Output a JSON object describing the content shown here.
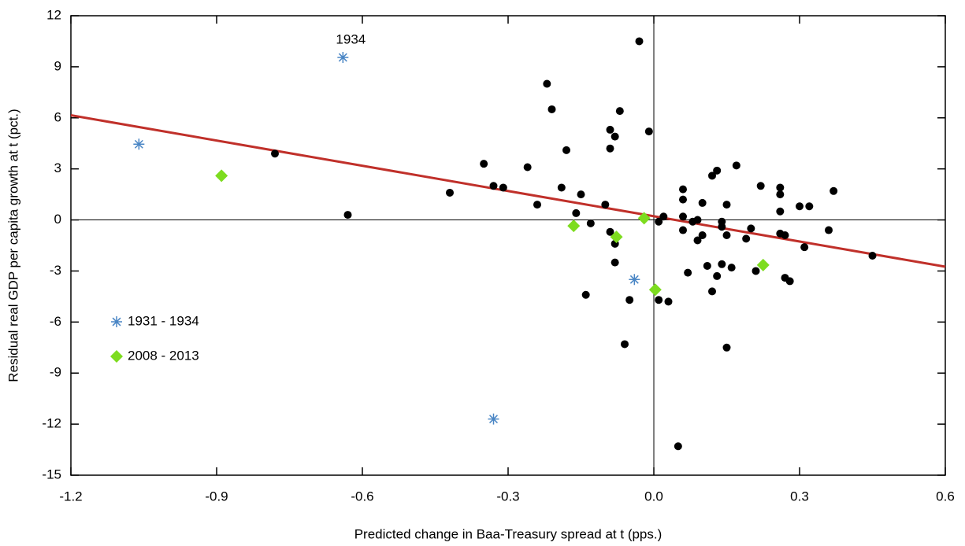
{
  "chart_data": {
    "type": "scatter",
    "xlabel": "Predicted change in Baa-Treasury spread at t (pps.)",
    "ylabel": "Residual real GDP per capita growth at t (pct.)",
    "xlim": [
      -1.2,
      0.6
    ],
    "ylim": [
      -15,
      12
    ],
    "xticks": [
      -1.2,
      -0.9,
      -0.6,
      -0.3,
      {
        "value": 0,
        "label": "0.0"
      },
      0.3,
      0.6
    ],
    "yticks": [
      -15,
      -12,
      -9,
      -6,
      -3,
      0,
      3,
      6,
      9,
      12
    ],
    "zero_lines": true,
    "legend": "lower left",
    "annotation": "1934",
    "series": [
      {
        "name": "1931 - 1934",
        "color": "#4a86c5",
        "marker": "star",
        "x": [
          -1.06,
          -0.64,
          -0.04,
          -0.33
        ],
        "values": [
          4.45,
          9.55,
          -3.5,
          -11.7
        ]
      },
      {
        "name": "2008 - 2013",
        "color": "#7ddc1f",
        "marker": "diamond",
        "x": [
          -0.89,
          -0.165,
          -0.077,
          -0.02,
          0.003,
          0.225
        ],
        "values": [
          2.6,
          -0.35,
          -1.0,
          0.1,
          -4.1,
          -2.65
        ]
      },
      {
        "color": "#000000",
        "marker": "dot",
        "x": [
          -0.78,
          -0.63,
          -0.42,
          -0.35,
          -0.33,
          -0.31,
          -0.26,
          -0.24,
          -0.22,
          -0.21,
          -0.19,
          -0.18,
          -0.16,
          -0.15,
          -0.14,
          -0.13,
          -0.1,
          -0.09,
          -0.09,
          -0.09,
          -0.08,
          -0.08,
          -0.08,
          -0.07,
          -0.06,
          -0.05,
          -0.03,
          -0.01,
          0.01,
          0.02,
          0.01,
          0.03,
          0.05,
          0.06,
          0.06,
          0.06,
          0.06,
          0.07,
          0.08,
          0.09,
          0.09,
          0.1,
          0.1,
          0.11,
          0.12,
          0.12,
          0.13,
          0.13,
          0.14,
          0.14,
          0.14,
          0.15,
          0.15,
          0.15,
          0.16,
          0.17,
          0.19,
          0.2,
          0.21,
          0.22,
          0.26,
          0.26,
          0.26,
          0.26,
          0.27,
          0.27,
          0.28,
          0.3,
          0.31,
          0.32,
          0.36,
          0.37,
          0.45
        ],
        "values": [
          3.9,
          0.3,
          1.6,
          3.3,
          2.0,
          1.9,
          3.1,
          0.9,
          8.0,
          6.5,
          1.9,
          4.1,
          0.4,
          1.5,
          -4.4,
          -0.2,
          0.9,
          4.2,
          -0.7,
          5.3,
          4.9,
          -1.4,
          -2.5,
          6.4,
          -7.3,
          -4.7,
          10.5,
          5.2,
          -0.1,
          0.2,
          -4.7,
          -4.8,
          -13.3,
          1.8,
          1.2,
          0.2,
          -0.6,
          -3.1,
          -0.1,
          0.0,
          -1.2,
          -0.9,
          1.0,
          -2.7,
          2.6,
          -4.2,
          2.9,
          -3.3,
          -0.1,
          -0.4,
          -2.6,
          -7.5,
          0.9,
          -0.9,
          -2.8,
          3.2,
          -1.1,
          -0.5,
          -3.0,
          2.0,
          0.5,
          1.9,
          1.5,
          -0.8,
          -0.9,
          -3.4,
          -3.6,
          0.8,
          -1.6,
          0.8,
          -0.6,
          1.7,
          -2.1
        ]
      }
    ],
    "fit": {
      "color": "#c0302a",
      "x": [
        -1.2,
        0.6
      ],
      "y": [
        6.15,
        -2.75
      ]
    }
  }
}
